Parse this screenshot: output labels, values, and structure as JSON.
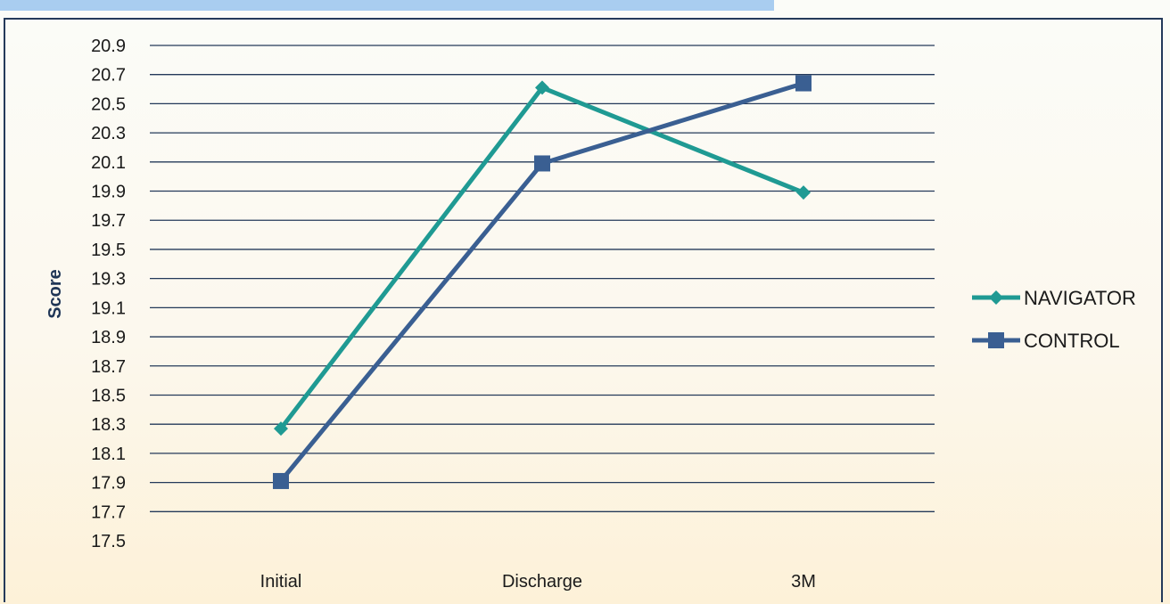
{
  "chart_data": {
    "type": "line",
    "categories": [
      "Initial",
      "Discharge",
      "3M"
    ],
    "series": [
      {
        "name": "NAVIGATOR",
        "values": [
          18.27,
          20.61,
          19.89
        ],
        "color": "#1f9a93",
        "marker": "diamond"
      },
      {
        "name": "CONTROL",
        "values": [
          17.91,
          20.09,
          20.64
        ],
        "color": "#3a5f92",
        "marker": "square"
      }
    ],
    "ylabel": "Score",
    "xlabel": "",
    "ylim": [
      17.5,
      20.9
    ],
    "yticks": [
      "17.5",
      "17.7",
      "17.9",
      "18.1",
      "18.3",
      "18.5",
      "18.7",
      "18.9",
      "19.1",
      "19.3",
      "19.5",
      "19.7",
      "19.9",
      "20.1",
      "20.3",
      "20.5",
      "20.7",
      "20.9"
    ],
    "grid": true,
    "legend": "right",
    "colors": {
      "grid": "#243a5a",
      "frame": "#243a5a",
      "title_bar": "#a9cdf0"
    }
  }
}
